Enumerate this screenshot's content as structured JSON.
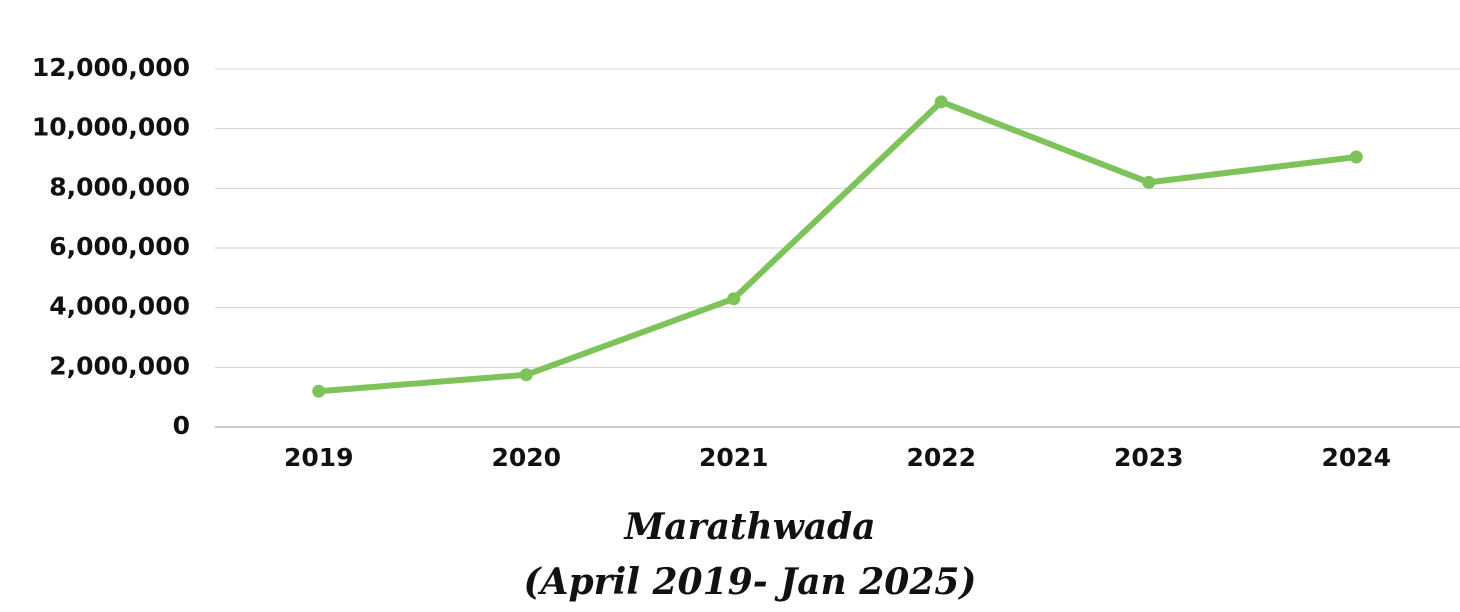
{
  "chart_data": {
    "type": "line",
    "title": "Marathwada",
    "subtitle": "(April 2019- Jan 2025)",
    "categories": [
      "2019",
      "2020",
      "2021",
      "2022",
      "2023",
      "2024"
    ],
    "series": [
      {
        "name": "Marathwada",
        "color": "#7dc35a",
        "values": [
          1200000,
          1750000,
          4300000,
          10900000,
          8200000,
          9050000
        ]
      }
    ],
    "ylim": [
      0,
      12000000
    ],
    "yticks": [
      0,
      {
        "value": 2000000,
        "label": "2,000,000"
      },
      {
        "value": 4000000,
        "label": "4,000,000"
      },
      {
        "value": 6000000,
        "label": "6,000,000"
      },
      {
        "value": 8000000,
        "label": "8,000,000"
      },
      {
        "value": 10000000,
        "label": "10,000,000"
      },
      {
        "value": 12000000,
        "label": "12,000,000"
      }
    ],
    "grid": true
  }
}
